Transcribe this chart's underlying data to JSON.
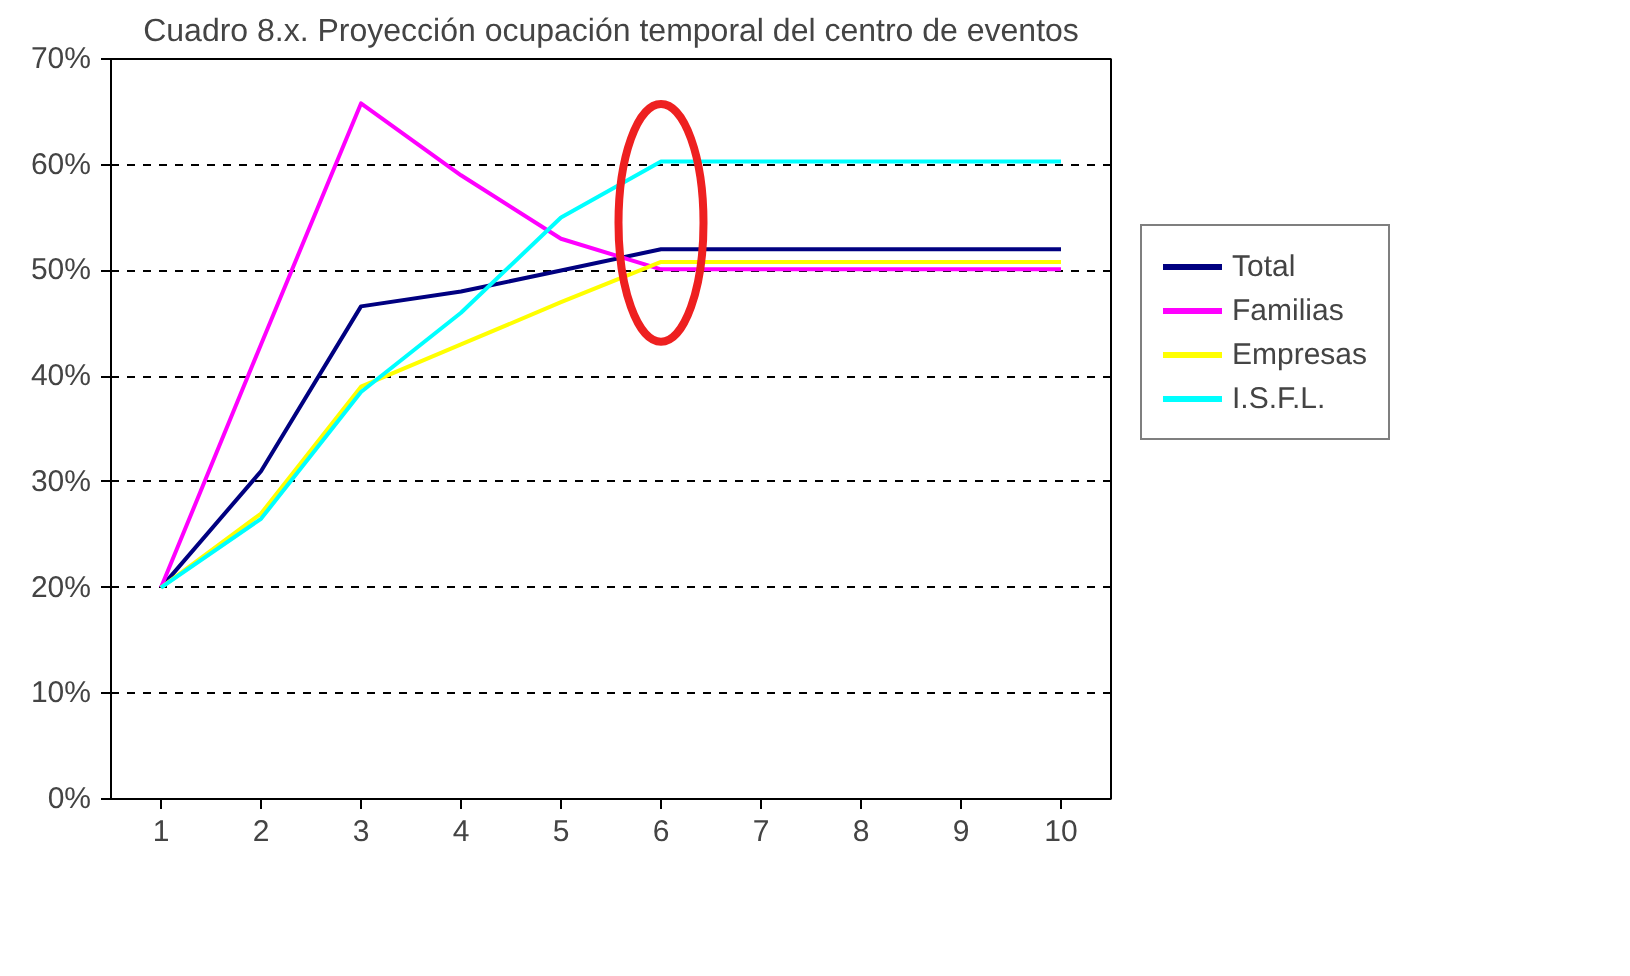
{
  "chart_data": {
    "type": "line",
    "title": "Cuadro 8.x. Proyección ocupación temporal del centro de eventos",
    "categories": [
      "1",
      "2",
      "3",
      "4",
      "5",
      "6",
      "7",
      "8",
      "9",
      "10"
    ],
    "series": [
      {
        "name": "Total",
        "color": "#000080",
        "values": [
          20,
          31,
          46.6,
          48,
          50,
          52,
          52,
          52,
          52,
          52
        ]
      },
      {
        "name": "Familias",
        "color": "#ff00ff",
        "values": [
          20,
          43,
          65.8,
          59,
          53,
          50.1,
          50.1,
          50.1,
          50.1,
          50.1
        ]
      },
      {
        "name": "Empresas",
        "color": "#ffff00",
        "values": [
          20,
          27,
          39,
          43,
          47,
          50.8,
          50.8,
          50.8,
          50.8,
          50.8
        ]
      },
      {
        "name": "I.S.F.L.",
        "color": "#00ffff",
        "values": [
          20,
          26.5,
          38.5,
          46,
          55,
          60.3,
          60.3,
          60.3,
          60.3,
          60.3
        ]
      }
    ],
    "ylim": [
      0,
      70
    ],
    "yticks": [
      {
        "value": 0,
        "label": "0%"
      },
      {
        "value": 10,
        "label": "10%"
      },
      {
        "value": 20,
        "label": "20%"
      },
      {
        "value": 30,
        "label": "30%"
      },
      {
        "value": 40,
        "label": "40%"
      },
      {
        "value": 50,
        "label": "50%"
      },
      {
        "value": 60,
        "label": "60%"
      },
      {
        "value": 70,
        "label": "70%"
      }
    ],
    "grid": "y",
    "legend": "right",
    "marker": "none",
    "line_style": "solid"
  }
}
